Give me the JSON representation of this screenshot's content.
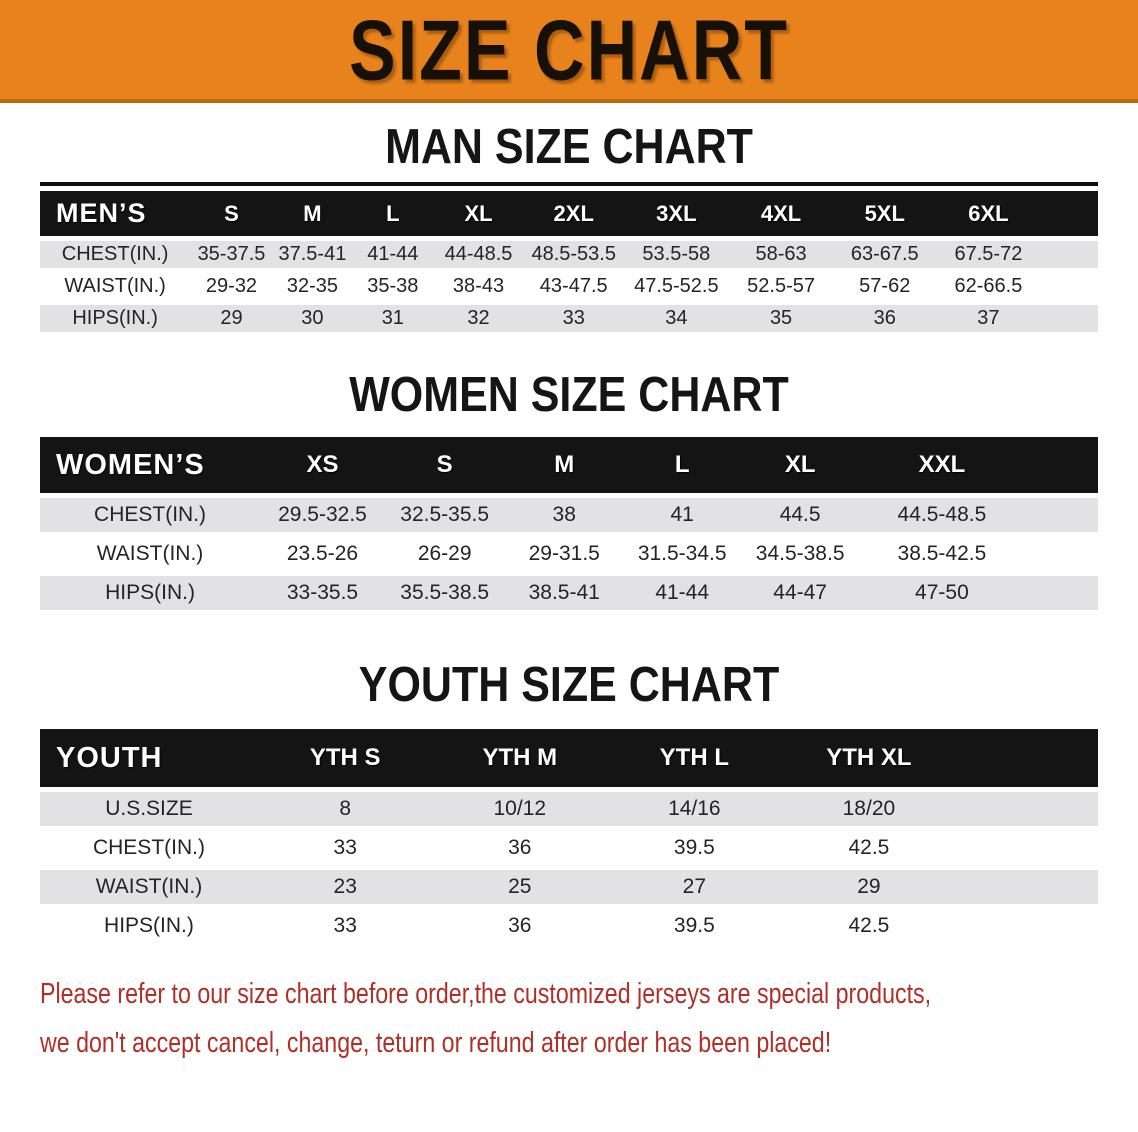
{
  "banner": {
    "title": "SIZE CHART",
    "bg_color": "#e8821c"
  },
  "sections": [
    {
      "heading": "MAN SIZE CHART",
      "table": {
        "label": "MEN’S",
        "columns": [
          "S",
          "M",
          "L",
          "XL",
          "2XL",
          "3XL",
          "4XL",
          "5XL",
          "6XL"
        ],
        "rows": [
          {
            "label": "CHEST(IN.)",
            "values": [
              "35-37.5",
              "37.5-41",
              "41-44",
              "44-48.5",
              "48.5-53.5",
              "53.5-58",
              "58-63",
              "63-67.5",
              "67.5-72"
            ]
          },
          {
            "label": "WAIST(IN.)",
            "values": [
              "29-32",
              "32-35",
              "35-38",
              "38-43",
              "43-47.5",
              "47.5-52.5",
              "52.5-57",
              "57-62",
              "62-66.5"
            ]
          },
          {
            "label": "HIPS(IN.)",
            "values": [
              "29",
              "30",
              "31",
              "32",
              "33",
              "34",
              "35",
              "36",
              "37"
            ]
          }
        ]
      }
    },
    {
      "heading": "WOMEN SIZE CHART",
      "table": {
        "label": "WOMEN’S",
        "columns": [
          "XS",
          "S",
          "M",
          "L",
          "XL",
          "XXL"
        ],
        "rows": [
          {
            "label": "CHEST(IN.)",
            "values": [
              "29.5-32.5",
              "32.5-35.5",
              "38",
              "41",
              "44.5",
              "44.5-48.5"
            ]
          },
          {
            "label": "WAIST(IN.)",
            "values": [
              "23.5-26",
              "26-29",
              "29-31.5",
              "31.5-34.5",
              "34.5-38.5",
              "38.5-42.5"
            ]
          },
          {
            "label": "HIPS(IN.)",
            "values": [
              "33-35.5",
              "35.5-38.5",
              "38.5-41",
              "41-44",
              "44-47",
              "47-50"
            ]
          }
        ]
      }
    },
    {
      "heading": "YOUTH SIZE CHART",
      "table": {
        "label": "YOUTH",
        "columns": [
          "YTH S",
          "YTH M",
          "YTH L",
          "YTH XL"
        ],
        "rows": [
          {
            "label": "U.S.SIZE",
            "values": [
              "8",
              "10/12",
              "14/16",
              "18/20"
            ]
          },
          {
            "label": "CHEST(IN.)",
            "values": [
              "33",
              "36",
              "39.5",
              "42.5"
            ]
          },
          {
            "label": "WAIST(IN.)",
            "values": [
              "23",
              "25",
              "27",
              "29"
            ]
          },
          {
            "label": "HIPS(IN.)",
            "values": [
              "33",
              "36",
              "39.5",
              "42.5"
            ]
          }
        ]
      }
    }
  ],
  "footer": {
    "line1": "Please refer to our size chart before order,the customized jerseys are special products,",
    "line2": "we don't accept cancel, change, teturn or refund after order has been placed!",
    "text_color": "#b03028"
  }
}
